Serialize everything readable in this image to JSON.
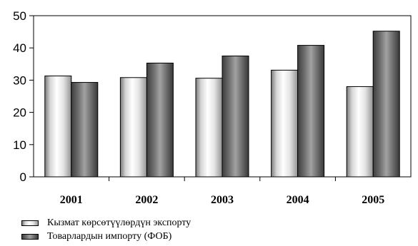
{
  "chart_data": {
    "type": "bar",
    "categories": [
      "2001",
      "2002",
      "2003",
      "2004",
      "2005"
    ],
    "series": [
      {
        "name": "Кызмат көрсөтүүлөрдүн экспорту",
        "values": [
          31.3,
          30.8,
          30.6,
          33.1,
          28.0
        ]
      },
      {
        "name": "Товарлардын импорту (ФОБ)",
        "values": [
          29.3,
          35.3,
          37.5,
          40.8,
          45.2
        ]
      }
    ],
    "y_ticks": [
      "0",
      "10",
      "20",
      "30",
      "40",
      "50"
    ],
    "ylim": [
      0,
      50
    ],
    "grid": false,
    "legend_position": "bottom-left"
  }
}
